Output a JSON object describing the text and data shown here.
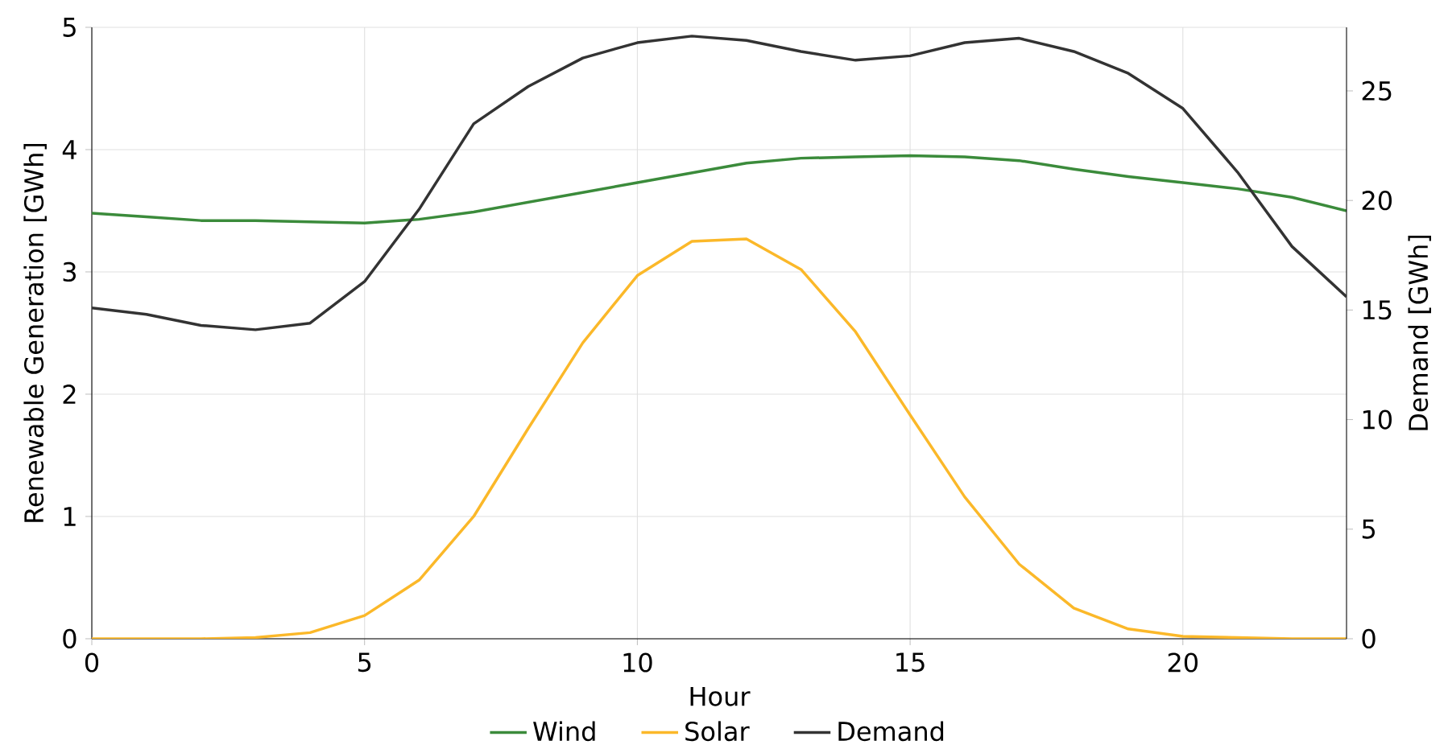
{
  "chart_data": {
    "type": "line",
    "xlabel": "Hour",
    "ylabel": "Renewable Generation [GWh]",
    "y2label": "Demand [GWh]",
    "x": [
      0,
      1,
      2,
      3,
      4,
      5,
      6,
      7,
      8,
      9,
      10,
      11,
      12,
      13,
      14,
      15,
      16,
      17,
      18,
      19,
      20,
      21,
      22,
      23
    ],
    "series": [
      {
        "name": "Wind",
        "color": "#3b8b3b",
        "values": [
          3.48,
          3.45,
          3.42,
          3.42,
          3.41,
          3.4,
          3.43,
          3.49,
          3.57,
          3.65,
          3.73,
          3.81,
          3.89,
          3.93,
          3.94,
          3.95,
          3.94,
          3.91,
          3.84,
          3.78,
          3.73,
          3.68,
          3.61,
          3.5
        ]
      },
      {
        "name": "Solar",
        "color": "#fbb829",
        "values": [
          0,
          0,
          0,
          0.01,
          0.05,
          0.19,
          0.48,
          1.0,
          1.72,
          2.42,
          2.97,
          3.25,
          3.27,
          3.02,
          2.51,
          1.83,
          1.16,
          0.61,
          0.25,
          0.08,
          0.02,
          0.01,
          0,
          0
        ]
      },
      {
        "name": "Demand",
        "color": "#333333",
        "axis": "y2",
        "values": [
          15.1,
          14.8,
          14.3,
          14.1,
          14.4,
          16.3,
          19.6,
          23.5,
          25.2,
          26.5,
          27.2,
          27.5,
          27.3,
          26.8,
          26.4,
          26.6,
          27.2,
          27.4,
          26.8,
          25.8,
          24.2,
          21.3,
          17.9,
          15.6
        ]
      }
    ],
    "xlim": [
      0,
      23
    ],
    "ylim": [
      0,
      5
    ],
    "y2lim": [
      0,
      27.9
    ],
    "xticks": [
      0,
      5,
      10,
      15,
      20
    ],
    "yticks": [
      0,
      1,
      2,
      3,
      4,
      5
    ],
    "y2ticks": [
      0,
      5,
      10,
      15,
      20,
      25
    ],
    "grid": true,
    "legend": "bottom",
    "marker": "none",
    "line_style": "solid"
  }
}
